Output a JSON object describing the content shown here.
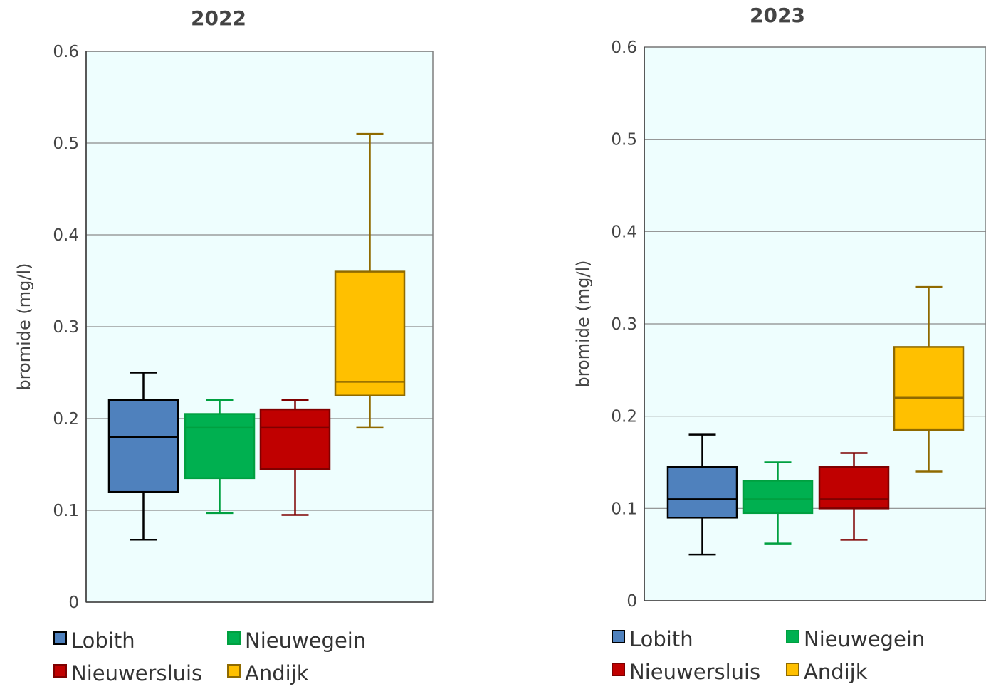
{
  "chart_data": [
    {
      "type": "boxplot",
      "title": "2022",
      "ylabel": "bromide  (mg/l)",
      "ylim": [
        0,
        0.6
      ],
      "yticks": [
        "0",
        "0.1",
        "0.2",
        "0.3",
        "0.4",
        "0.5",
        "0.6"
      ],
      "grid": true,
      "background": "#eefefe",
      "legend_position": "bottom",
      "series": [
        {
          "name": "Lobith",
          "color": "#4f81bd",
          "whisker_color": "#000000",
          "min": 0.068,
          "q1": 0.12,
          "median": 0.18,
          "q3": 0.22,
          "max": 0.25
        },
        {
          "name": "Nieuwegein",
          "color": "#00b050",
          "whisker_color": "#00a040",
          "min": 0.097,
          "q1": 0.135,
          "median": 0.19,
          "q3": 0.205,
          "max": 0.22
        },
        {
          "name": "Nieuwersluis",
          "color": "#c00000",
          "whisker_color": "#7f0000",
          "min": 0.095,
          "q1": 0.145,
          "median": 0.19,
          "q3": 0.21,
          "max": 0.22
        },
        {
          "name": "Andijk",
          "color": "#ffc000",
          "whisker_color": "#8f6a00",
          "min": 0.19,
          "q1": 0.225,
          "median": 0.24,
          "q3": 0.36,
          "max": 0.51
        }
      ]
    },
    {
      "type": "boxplot",
      "title": "2023",
      "ylabel": "bromide  (mg/l)",
      "ylim": [
        0,
        0.6
      ],
      "yticks": [
        "0",
        "0.1",
        "0.2",
        "0.3",
        "0.4",
        "0.5",
        "0.6"
      ],
      "grid": true,
      "background": "#eefefe",
      "legend_position": "bottom",
      "series": [
        {
          "name": "Lobith",
          "color": "#4f81bd",
          "whisker_color": "#000000",
          "min": 0.05,
          "q1": 0.09,
          "median": 0.11,
          "q3": 0.145,
          "max": 0.18
        },
        {
          "name": "Nieuwegein",
          "color": "#00b050",
          "whisker_color": "#00a040",
          "min": 0.062,
          "q1": 0.095,
          "median": 0.11,
          "q3": 0.13,
          "max": 0.15
        },
        {
          "name": "Nieuwersluis",
          "color": "#c00000",
          "whisker_color": "#7f0000",
          "min": 0.066,
          "q1": 0.1,
          "median": 0.11,
          "q3": 0.145,
          "max": 0.16
        },
        {
          "name": "Andijk",
          "color": "#ffc000",
          "whisker_color": "#8f6a00",
          "min": 0.14,
          "q1": 0.185,
          "median": 0.22,
          "q3": 0.275,
          "max": 0.34
        }
      ]
    }
  ]
}
